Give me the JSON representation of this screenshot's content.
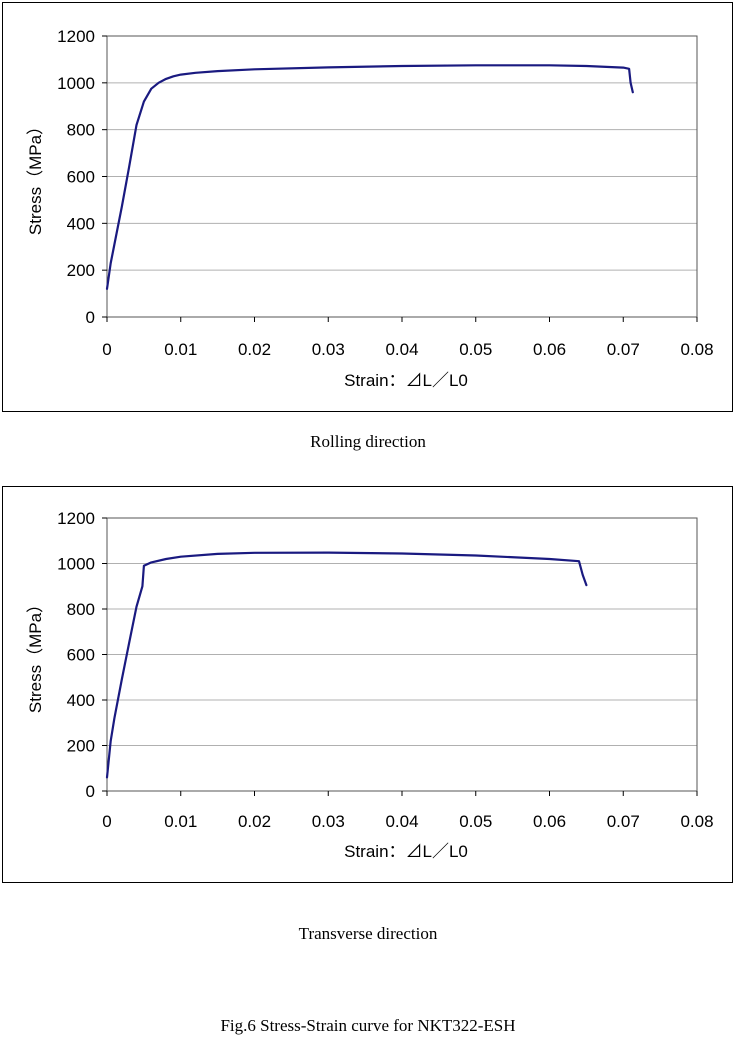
{
  "chart_data": [
    {
      "type": "line",
      "title": "",
      "xlabel": "Strain：⊿L／L0",
      "ylabel": "Stress（MPa）",
      "xlim": [
        0,
        0.08
      ],
      "ylim": [
        0,
        1200
      ],
      "xticks": [
        "0",
        "0.01",
        "0.02",
        "0.03",
        "0.04",
        "0.05",
        "0.06",
        "0.07",
        "0.08"
      ],
      "yticks": [
        "0",
        "200",
        "400",
        "600",
        "800",
        "1000",
        "1200"
      ],
      "grid": "horizontal",
      "line_color": "#1a1a80",
      "series": [
        {
          "x": [
            0,
            0.0005,
            0.001,
            0.002,
            0.003,
            0.004,
            0.005,
            0.006,
            0.007,
            0.008,
            0.009,
            0.01,
            0.012,
            0.015,
            0.02,
            0.03,
            0.04,
            0.05,
            0.06,
            0.065,
            0.07,
            0.0708,
            0.071,
            0.0713
          ],
          "y": [
            120,
            230,
            310,
            470,
            640,
            820,
            920,
            975,
            1000,
            1017,
            1028,
            1035,
            1043,
            1050,
            1058,
            1066,
            1072,
            1075,
            1075,
            1072,
            1065,
            1060,
            1000,
            960
          ]
        }
      ],
      "caption": "Rolling direction"
    },
    {
      "type": "line",
      "title": "",
      "xlabel": "Strain：⊿L／L0",
      "ylabel": "Stress（MPa）",
      "xlim": [
        0,
        0.08
      ],
      "ylim": [
        0,
        1200
      ],
      "xticks": [
        "0",
        "0.01",
        "0.02",
        "0.03",
        "0.04",
        "0.05",
        "0.06",
        "0.07",
        "0.08"
      ],
      "yticks": [
        "0",
        "200",
        "400",
        "600",
        "800",
        "1000",
        "1200"
      ],
      "grid": "horizontal",
      "line_color": "#1a1a80",
      "series": [
        {
          "x": [
            0,
            0.0005,
            0.001,
            0.002,
            0.003,
            0.004,
            0.0048,
            0.005,
            0.006,
            0.008,
            0.01,
            0.015,
            0.02,
            0.03,
            0.04,
            0.05,
            0.06,
            0.064,
            0.0645,
            0.065
          ],
          "y": [
            60,
            220,
            320,
            490,
            650,
            810,
            900,
            990,
            1005,
            1020,
            1030,
            1042,
            1047,
            1048,
            1044,
            1035,
            1020,
            1010,
            950,
            905
          ]
        }
      ],
      "caption": "Transverse direction"
    }
  ],
  "figure_caption": "Fig.6 Stress-Strain curve for NKT322-ESH"
}
